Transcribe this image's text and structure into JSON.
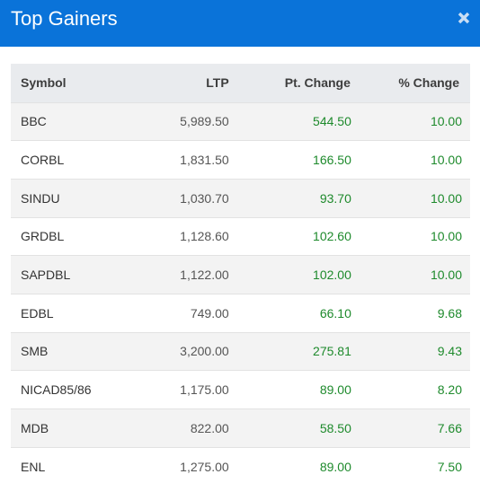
{
  "modal": {
    "title": "Top Gainers",
    "close_icon": "close-icon",
    "header_color": "#0a73d9"
  },
  "table": {
    "headers": {
      "symbol": "Symbol",
      "ltp": "LTP",
      "pt_change": "Pt. Change",
      "pct_change": "% Change"
    },
    "positive_color": "#1e8a2c",
    "rows": [
      {
        "symbol": "BBC",
        "ltp": "5,989.50",
        "pt_change": "544.50",
        "pct_change": "10.00"
      },
      {
        "symbol": "CORBL",
        "ltp": "1,831.50",
        "pt_change": "166.50",
        "pct_change": "10.00"
      },
      {
        "symbol": "SINDU",
        "ltp": "1,030.70",
        "pt_change": "93.70",
        "pct_change": "10.00"
      },
      {
        "symbol": "GRDBL",
        "ltp": "1,128.60",
        "pt_change": "102.60",
        "pct_change": "10.00"
      },
      {
        "symbol": "SAPDBL",
        "ltp": "1,122.00",
        "pt_change": "102.00",
        "pct_change": "10.00"
      },
      {
        "symbol": "EDBL",
        "ltp": "749.00",
        "pt_change": "66.10",
        "pct_change": "9.68"
      },
      {
        "symbol": "SMB",
        "ltp": "3,200.00",
        "pt_change": "275.81",
        "pct_change": "9.43"
      },
      {
        "symbol": "NICAD85/86",
        "ltp": "1,175.00",
        "pt_change": "89.00",
        "pct_change": "8.20"
      },
      {
        "symbol": "MDB",
        "ltp": "822.00",
        "pt_change": "58.50",
        "pct_change": "7.66"
      },
      {
        "symbol": "ENL",
        "ltp": "1,275.00",
        "pt_change": "89.00",
        "pct_change": "7.50"
      }
    ]
  }
}
